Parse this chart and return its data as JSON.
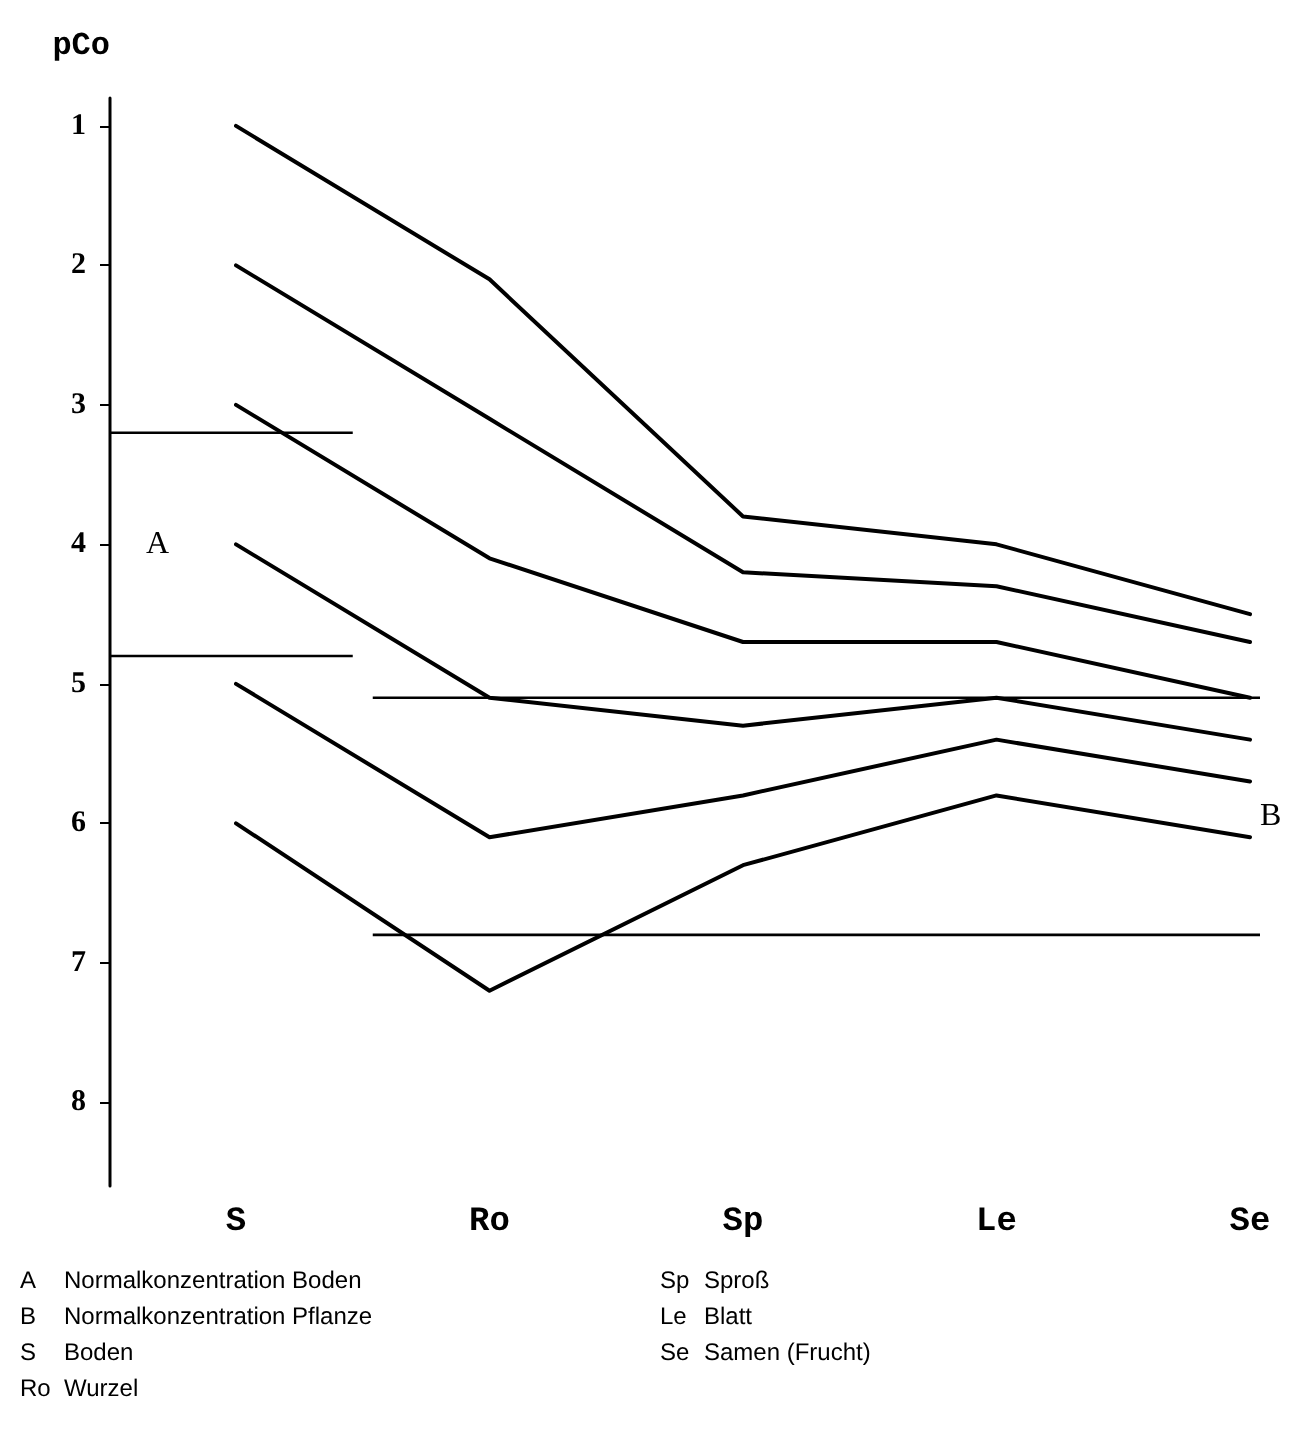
{
  "chart_data": {
    "type": "line",
    "ylabel": "pCo",
    "categories": [
      "S",
      "Ro",
      "Sp",
      "Le",
      "Se"
    ],
    "series": [
      {
        "color": "#000000",
        "values": [
          1,
          2.1,
          3.8,
          4.0,
          4.5
        ]
      },
      {
        "color": "#000000",
        "values": [
          2,
          3.1,
          4.2,
          4.3,
          4.7
        ]
      },
      {
        "color": "#000000",
        "values": [
          3,
          4.1,
          4.7,
          4.7,
          5.1
        ]
      },
      {
        "color": "#000000",
        "values": [
          4,
          5.1,
          5.3,
          5.1,
          5.4
        ]
      },
      {
        "color": "#000000",
        "values": [
          5,
          6.1,
          5.8,
          5.4,
          5.7
        ]
      },
      {
        "color": "#000000",
        "values": [
          6,
          7.2,
          6.3,
          5.8,
          6.1
        ]
      }
    ],
    "ylim": [
      8.6,
      0.8
    ],
    "yticks": [
      1,
      2,
      3,
      4,
      5,
      6,
      7,
      8
    ],
    "ref_lines": [
      {
        "axis": "y",
        "value": 3.2,
        "color": "#000000"
      },
      {
        "axis": "y",
        "value": 4.8,
        "color": "#000000"
      },
      {
        "axis": "y",
        "value": 5.1,
        "color": "#000000"
      },
      {
        "axis": "y",
        "value": 6.8,
        "color": "#000000"
      }
    ],
    "annotations": [
      "A",
      "B",
      "A   Normalkonzentration Boden",
      "B   Normalkonzentration Pflanze",
      "S   Boden",
      "Ro  Wurzel",
      "Sp  Sproß",
      "Le  Blatt",
      "Se  Samen (Frucht)"
    ],
    "grid": false,
    "marker": "none",
    "line_style": "solid"
  }
}
